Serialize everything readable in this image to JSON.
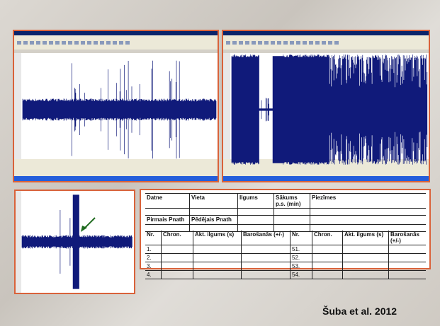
{
  "table": {
    "header": [
      "Datne",
      "Vieta",
      "Ilgums",
      "Sākums p.s. (min)",
      "Piezīmes"
    ],
    "second": [
      "Pirmais Pnath",
      "Pēdējais Pnath"
    ],
    "columns": [
      "Nr.",
      "Chron.",
      "Akt. ilgums (s)",
      "Barošanās (+/-)",
      "Nr.",
      "Chron.",
      "Akt. ilgums (s)",
      "Barošanās (+/-)"
    ],
    "rows": [
      [
        "1.",
        "51."
      ],
      [
        "2.",
        "52."
      ],
      [
        "3.",
        "53."
      ],
      [
        "4.",
        "54."
      ]
    ]
  },
  "citation": "Šuba et al. 2012"
}
